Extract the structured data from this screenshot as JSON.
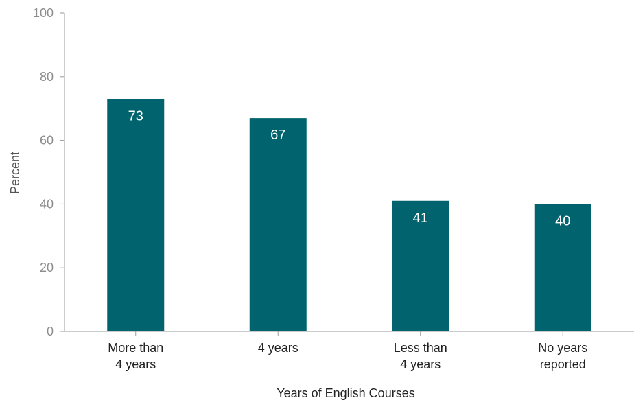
{
  "chart_data": {
    "type": "bar",
    "title": "",
    "xlabel": "Years of English Courses",
    "ylabel": "Percent",
    "ylim": [
      0,
      100
    ],
    "yticks": [
      "0",
      "20",
      "40",
      "60",
      "80",
      "100"
    ],
    "grid": false,
    "categories": [
      [
        "More than",
        "4 years"
      ],
      [
        "4 years"
      ],
      [
        "Less than",
        "4 years"
      ],
      [
        "No years",
        "reported"
      ]
    ],
    "values": [
      73,
      67,
      41,
      40
    ],
    "data_labels": [
      "73",
      "67",
      "41",
      "40"
    ],
    "colors": {
      "bar": "#00636e",
      "axis": "#9a9a9a",
      "tick_text": "#8c8c8c",
      "label_text": "#222222",
      "data_label_text": "#ffffff"
    }
  }
}
